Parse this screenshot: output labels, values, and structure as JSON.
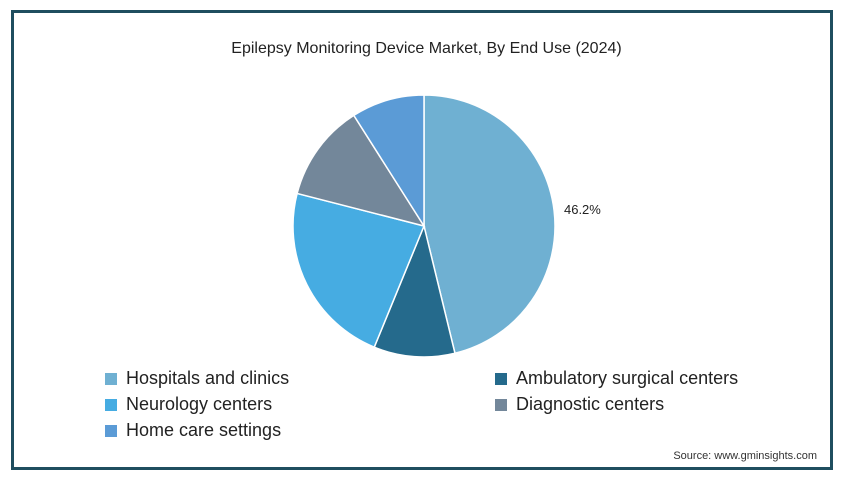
{
  "chart_data": {
    "type": "pie",
    "title": "Epilepsy Monitoring Device Market, By End Use (2024)",
    "categories": [
      "Hospitals and clinics",
      "Ambulatory surgical centers",
      "Neurology centers",
      "Diagnostic centers",
      "Home care settings"
    ],
    "values": [
      46.2,
      10.0,
      22.8,
      12.0,
      9.0
    ],
    "colors": [
      "#6fb0d2",
      "#256a8c",
      "#46ace2",
      "#73879a",
      "#5b9bd6"
    ],
    "data_labels": [
      "46.2%",
      "",
      "",
      "",
      ""
    ],
    "legend_placement": "bottom"
  },
  "source": "Source: www.gminsights.com"
}
